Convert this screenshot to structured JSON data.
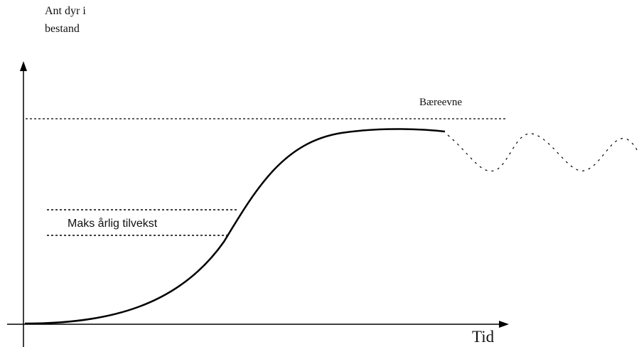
{
  "axes": {
    "y_label": [
      "Ant dyr i",
      "bestand"
    ],
    "x_label": "Tid"
  },
  "annotations": {
    "carrying_capacity": "Bæreevne",
    "max_growth": "Maks årlig tilvekst"
  }
}
